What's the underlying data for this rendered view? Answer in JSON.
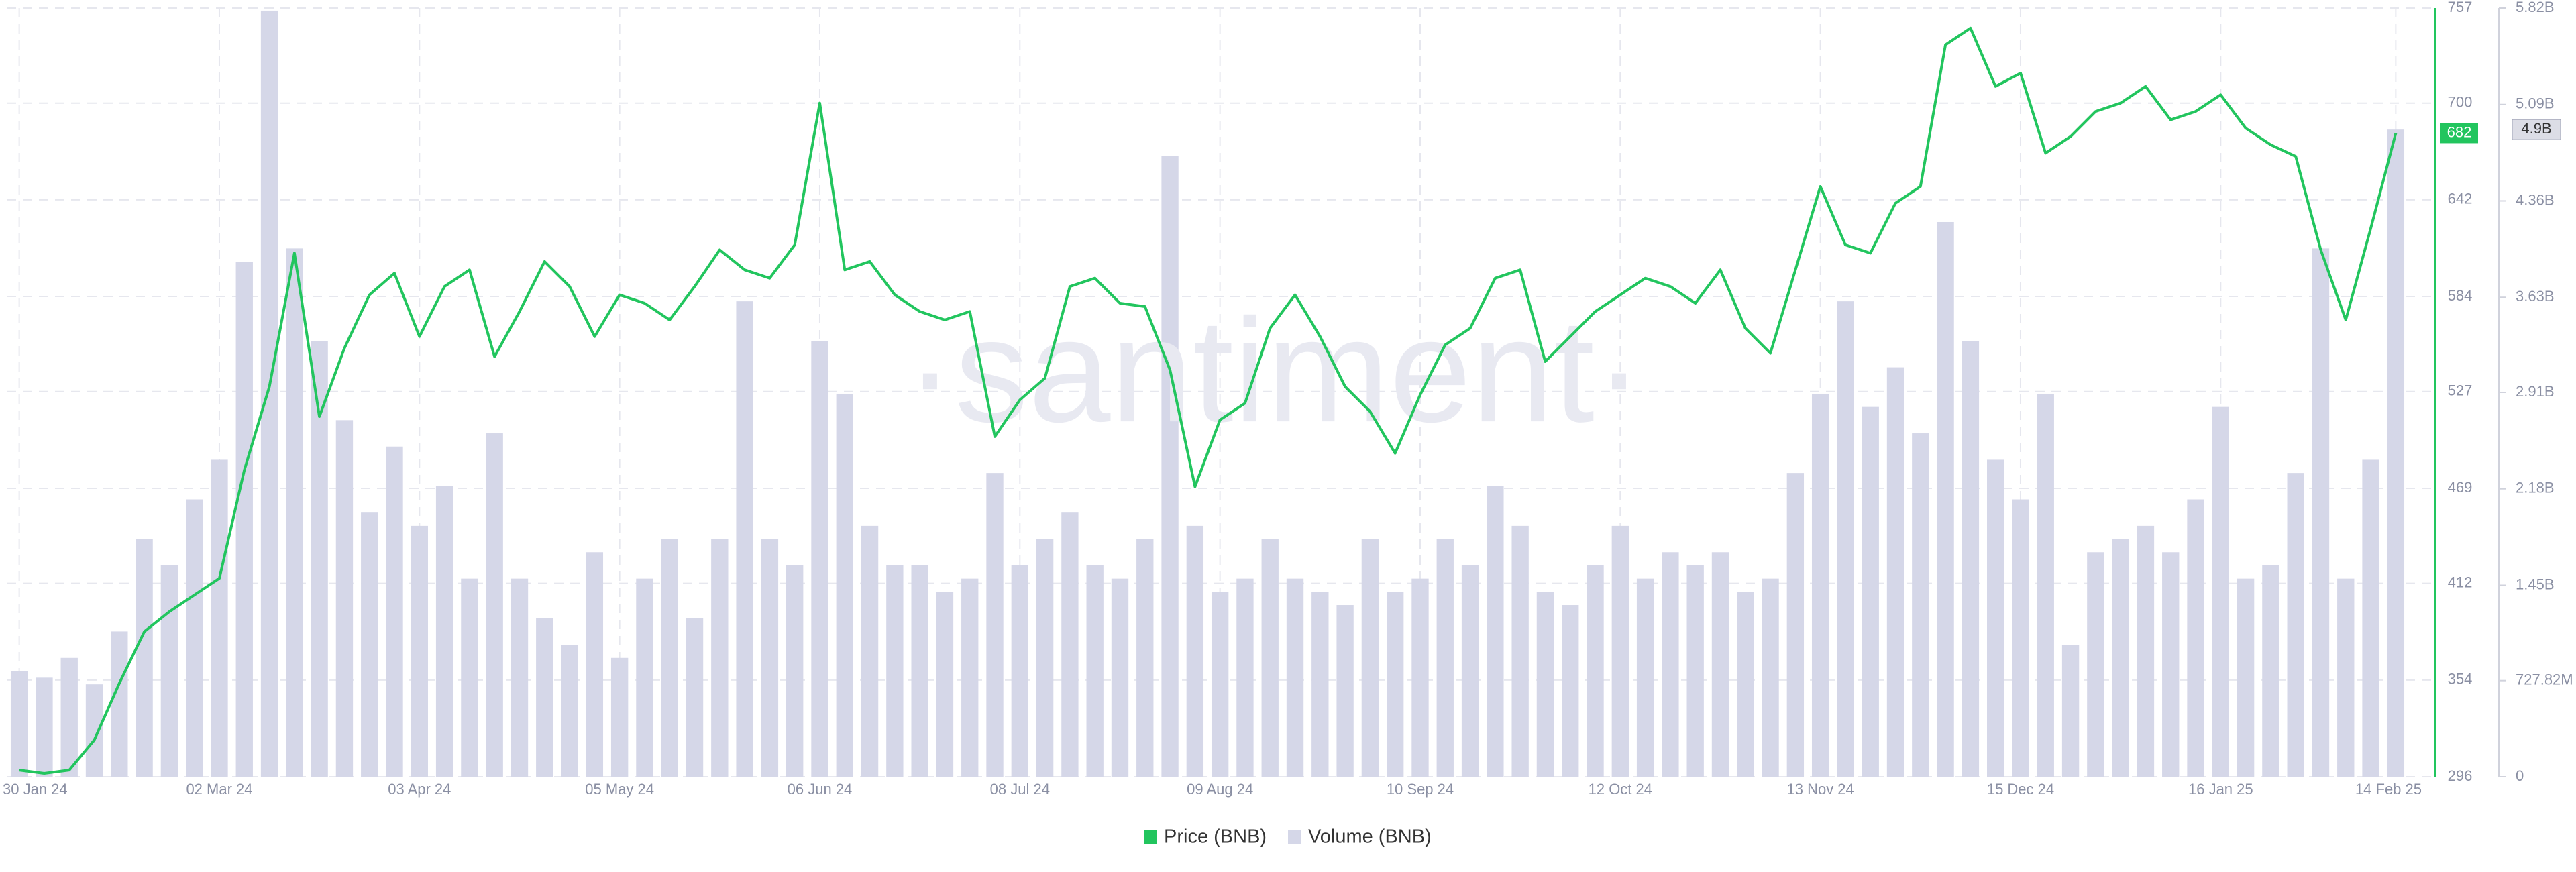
{
  "chart_data": {
    "type": "combo",
    "watermark": "·santiment·",
    "grid": true,
    "categories": [
      "30 Jan 24",
      null,
      null,
      null,
      null,
      null,
      null,
      null,
      "02 Mar 24",
      null,
      null,
      null,
      null,
      null,
      null,
      null,
      "03 Apr 24",
      null,
      null,
      null,
      null,
      null,
      null,
      null,
      "05 May 24",
      null,
      null,
      null,
      null,
      null,
      null,
      null,
      "06 Jun 24",
      null,
      null,
      null,
      null,
      null,
      null,
      null,
      "08 Jul 24",
      null,
      null,
      null,
      null,
      null,
      null,
      null,
      "09 Aug 24",
      null,
      null,
      null,
      null,
      null,
      null,
      null,
      "10 Sep 24",
      null,
      null,
      null,
      null,
      null,
      null,
      null,
      "12 Oct 24",
      null,
      null,
      null,
      null,
      null,
      null,
      null,
      "13 Nov 24",
      null,
      null,
      null,
      null,
      null,
      null,
      null,
      "15 Dec 24",
      null,
      null,
      null,
      null,
      null,
      null,
      null,
      "16 Jan 25",
      null,
      null,
      null,
      null,
      null,
      null,
      "14 Feb 25"
    ],
    "series": [
      {
        "name": "Price (BNB)",
        "type": "line",
        "axis": "y",
        "color": "#22c55e",
        "values": [
          300,
          298,
          300,
          318,
          352,
          383,
          395,
          405,
          415,
          480,
          530,
          610,
          512,
          553,
          585,
          598,
          560,
          590,
          600,
          548,
          575,
          605,
          590,
          560,
          585,
          580,
          570,
          590,
          612,
          600,
          595,
          615,
          700,
          600,
          605,
          585,
          575,
          570,
          575,
          500,
          522,
          535,
          590,
          595,
          580,
          578,
          540,
          470,
          510,
          520,
          565,
          585,
          560,
          530,
          515,
          490,
          525,
          555,
          565,
          595,
          600,
          545,
          560,
          575,
          585,
          595,
          590,
          580,
          600,
          565,
          550,
          600,
          650,
          615,
          610,
          640,
          650,
          735,
          745,
          710,
          718,
          670,
          680,
          695,
          700,
          710,
          690,
          695,
          705,
          685,
          675,
          668,
          612,
          570,
          625,
          682
        ]
      },
      {
        "name": "Volume (BNB)",
        "type": "bar",
        "axis": "y2",
        "color": "#d5d7e8",
        "values": [
          800000000,
          750000000,
          900000000,
          700000000,
          1100000000,
          1800000000,
          1600000000,
          2100000000,
          2400000000,
          3900000000,
          5800000000,
          4000000000,
          3300000000,
          2700000000,
          2000000000,
          2500000000,
          1900000000,
          2200000000,
          1500000000,
          2600000000,
          1500000000,
          1200000000,
          1000000000,
          1700000000,
          900000000,
          1500000000,
          1800000000,
          1200000000,
          1800000000,
          3600000000,
          1800000000,
          1600000000,
          3300000000,
          2900000000,
          1900000000,
          1600000000,
          1600000000,
          1400000000,
          1500000000,
          2300000000,
          1600000000,
          1800000000,
          2000000000,
          1600000000,
          1500000000,
          1800000000,
          4700000000,
          1900000000,
          1400000000,
          1500000000,
          1800000000,
          1500000000,
          1400000000,
          1300000000,
          1800000000,
          1400000000,
          1500000000,
          1800000000,
          1600000000,
          2200000000,
          1900000000,
          1400000000,
          1300000000,
          1600000000,
          1900000000,
          1500000000,
          1700000000,
          1600000000,
          1700000000,
          1400000000,
          1500000000,
          2300000000,
          2900000000,
          3600000000,
          2800000000,
          3100000000,
          2600000000,
          4200000000,
          3300000000,
          2400000000,
          2100000000,
          2900000000,
          1000000000,
          1700000000,
          1800000000,
          1900000000,
          1700000000,
          2100000000,
          2800000000,
          1500000000,
          1600000000,
          2300000000,
          4000000000,
          1500000000,
          2400000000,
          4900000000
        ],
        "value_labels": [
          null,
          null,
          null,
          null,
          null,
          null,
          null,
          null,
          null,
          null,
          null,
          null,
          null,
          null,
          null,
          null,
          null,
          null,
          null,
          null,
          null,
          null,
          null,
          null,
          null,
          null,
          null,
          null,
          null,
          null,
          null,
          null,
          null,
          null,
          null,
          null,
          null,
          null,
          null,
          null,
          null,
          null,
          null,
          null,
          null,
          null,
          null,
          null,
          null,
          null,
          null,
          null,
          null,
          null,
          null,
          null,
          null,
          null,
          null,
          null,
          null,
          null,
          null,
          null,
          null,
          null,
          null,
          null,
          null,
          null,
          null,
          null,
          null,
          null,
          null,
          null,
          null,
          null,
          null,
          null,
          null,
          null,
          null,
          null,
          null,
          null,
          null,
          null,
          null,
          null,
          null,
          null,
          null,
          null,
          null,
          "4.9B"
        ]
      }
    ],
    "ylim": [
      296,
      757
    ],
    "yticks": [
      296,
      354,
      412,
      469,
      527,
      584,
      642,
      700,
      757
    ],
    "y2lim": [
      0,
      5820000000
    ],
    "y2ticks": [
      0,
      {
        "value": 727820000,
        "label": "727.82M"
      },
      {
        "value": 1450000000,
        "label": "1.45B"
      },
      {
        "value": 2180000000,
        "label": "2.18B"
      },
      {
        "value": 2910000000,
        "label": "2.91B"
      },
      {
        "value": 3630000000,
        "label": "3.63B"
      },
      {
        "value": 4360000000,
        "label": "4.36B"
      },
      {
        "value": 5090000000,
        "label": "5.09B"
      },
      {
        "value": 5820000000,
        "label": "5.82B"
      }
    ]
  }
}
